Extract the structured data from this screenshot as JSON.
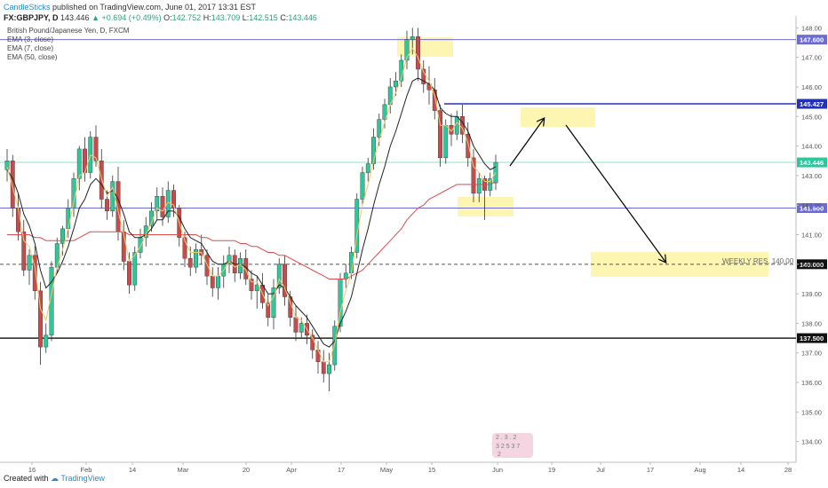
{
  "header": {
    "author": "CandleSticks",
    "published": "published on TradingView.com, June 01, 2017 13:31 EST",
    "symbol": "FX:GBPJPY, D",
    "last": "143.446",
    "change": "+0.694 (+0.49%)",
    "open_label": "O:",
    "open": "142.752",
    "high_label": "H:",
    "high": "143.709",
    "low_label": "L:",
    "low": "142.515",
    "close_label": "C:",
    "close": "143.446"
  },
  "meta": {
    "title": "British Pound/Japanese Yen, D, FXCM",
    "ema1": "EMA (3, close)",
    "ema2": "EMA (7, close)",
    "ema3": "EMA (50, close)"
  },
  "footer": {
    "created_with": "Created with",
    "brand": "TradingView"
  },
  "colors": {
    "up": "#2ec79a",
    "down": "#c74b4b",
    "ema_fast": "#f0c96a",
    "ema_mid": "#222222",
    "ema_slow": "#e04b4b",
    "level_blue": "#6b6bd6",
    "level_strong": "#2330b8",
    "highlight": "#fdf5a6",
    "price_tag": "#2ec79a"
  },
  "chart_data": {
    "type": "candlestick",
    "y_axis": {
      "ylim": [
        133.3,
        148.4
      ],
      "ticks": [
        "148.00",
        "147.00",
        "146.00",
        "145.00",
        "144.00",
        "143.00",
        "142.00",
        "141.00",
        "140.00",
        "139.00",
        "138.00",
        "137.00",
        "136.00",
        "135.00",
        "134.00"
      ]
    },
    "x_axis": {
      "ticks": [
        "16",
        "Feb",
        "14",
        "Mar",
        "20",
        "Apr",
        "17",
        "May",
        "15",
        "Jun",
        "19",
        "Jul",
        "17",
        "Aug",
        "14",
        "28"
      ]
    },
    "levels": [
      {
        "value": 147.6,
        "label": "147.600",
        "style": "solid"
      },
      {
        "value": 145.427,
        "label": "145.427",
        "style": "bold"
      },
      {
        "value": 143.446,
        "label": "143.446",
        "style": "current"
      },
      {
        "value": 141.9,
        "label": "141.900",
        "style": "solid"
      },
      {
        "value": 140.0,
        "label": "140.000",
        "style": "dashed"
      },
      {
        "value": 137.5,
        "label": "137.500",
        "style": "bold"
      }
    ],
    "annotation": {
      "text": "WEEKLY RES. 140.00"
    },
    "candles": [
      {
        "o": 143.2,
        "h": 143.9,
        "l": 142.8,
        "c": 143.5
      },
      {
        "o": 143.5,
        "h": 143.7,
        "l": 141.6,
        "c": 141.9
      },
      {
        "o": 141.9,
        "h": 142.4,
        "l": 140.8,
        "c": 141.1
      },
      {
        "o": 141.1,
        "h": 141.5,
        "l": 139.6,
        "c": 139.8
      },
      {
        "o": 139.8,
        "h": 140.5,
        "l": 139.3,
        "c": 140.3
      },
      {
        "o": 140.3,
        "h": 140.6,
        "l": 138.8,
        "c": 139.1
      },
      {
        "o": 139.1,
        "h": 139.4,
        "l": 136.6,
        "c": 137.2
      },
      {
        "o": 137.2,
        "h": 138.0,
        "l": 137.0,
        "c": 137.6
      },
      {
        "o": 137.6,
        "h": 140.1,
        "l": 137.4,
        "c": 139.9
      },
      {
        "o": 139.9,
        "h": 140.9,
        "l": 139.7,
        "c": 140.7
      },
      {
        "o": 140.7,
        "h": 141.3,
        "l": 140.3,
        "c": 141.2
      },
      {
        "o": 141.2,
        "h": 142.2,
        "l": 140.9,
        "c": 141.9
      },
      {
        "o": 141.9,
        "h": 143.1,
        "l": 141.6,
        "c": 142.9
      },
      {
        "o": 142.9,
        "h": 144.0,
        "l": 142.5,
        "c": 143.9
      },
      {
        "o": 143.9,
        "h": 144.3,
        "l": 142.8,
        "c": 143.1
      },
      {
        "o": 143.1,
        "h": 144.5,
        "l": 142.9,
        "c": 144.3
      },
      {
        "o": 144.3,
        "h": 144.7,
        "l": 143.3,
        "c": 143.5
      },
      {
        "o": 143.5,
        "h": 143.9,
        "l": 141.9,
        "c": 142.2
      },
      {
        "o": 142.2,
        "h": 142.5,
        "l": 141.5,
        "c": 141.8
      },
      {
        "o": 141.8,
        "h": 143.0,
        "l": 141.6,
        "c": 142.8
      },
      {
        "o": 142.8,
        "h": 143.3,
        "l": 140.8,
        "c": 141.1
      },
      {
        "o": 141.1,
        "h": 141.5,
        "l": 139.8,
        "c": 140.1
      },
      {
        "o": 140.1,
        "h": 140.4,
        "l": 139.0,
        "c": 139.3
      },
      {
        "o": 139.3,
        "h": 140.6,
        "l": 139.1,
        "c": 140.4
      },
      {
        "o": 140.4,
        "h": 141.2,
        "l": 140.2,
        "c": 140.9
      },
      {
        "o": 140.9,
        "h": 141.6,
        "l": 140.6,
        "c": 141.3
      },
      {
        "o": 141.3,
        "h": 142.1,
        "l": 141.1,
        "c": 141.8
      },
      {
        "o": 141.8,
        "h": 142.6,
        "l": 141.5,
        "c": 142.3
      },
      {
        "o": 142.3,
        "h": 142.6,
        "l": 141.3,
        "c": 141.6
      },
      {
        "o": 141.6,
        "h": 142.8,
        "l": 141.4,
        "c": 142.5
      },
      {
        "o": 142.5,
        "h": 142.7,
        "l": 141.6,
        "c": 141.9
      },
      {
        "o": 141.9,
        "h": 142.0,
        "l": 140.6,
        "c": 140.9
      },
      {
        "o": 140.9,
        "h": 141.1,
        "l": 139.9,
        "c": 140.2
      },
      {
        "o": 140.2,
        "h": 140.6,
        "l": 139.6,
        "c": 139.9
      },
      {
        "o": 139.9,
        "h": 140.7,
        "l": 139.7,
        "c": 140.5
      },
      {
        "o": 140.5,
        "h": 141.0,
        "l": 140.0,
        "c": 140.3
      },
      {
        "o": 140.3,
        "h": 140.5,
        "l": 139.3,
        "c": 139.6
      },
      {
        "o": 139.6,
        "h": 139.9,
        "l": 138.9,
        "c": 139.2
      },
      {
        "o": 139.2,
        "h": 139.9,
        "l": 138.8,
        "c": 139.6
      },
      {
        "o": 139.6,
        "h": 140.3,
        "l": 139.2,
        "c": 140.0
      },
      {
        "o": 140.0,
        "h": 140.6,
        "l": 139.7,
        "c": 140.3
      },
      {
        "o": 140.3,
        "h": 140.5,
        "l": 139.4,
        "c": 139.7
      },
      {
        "o": 139.7,
        "h": 140.4,
        "l": 139.5,
        "c": 140.2
      },
      {
        "o": 140.2,
        "h": 140.5,
        "l": 139.3,
        "c": 139.5
      },
      {
        "o": 139.5,
        "h": 139.8,
        "l": 138.8,
        "c": 139.1
      },
      {
        "o": 139.1,
        "h": 139.6,
        "l": 138.5,
        "c": 139.3
      },
      {
        "o": 139.3,
        "h": 139.7,
        "l": 138.5,
        "c": 138.7
      },
      {
        "o": 138.7,
        "h": 139.0,
        "l": 137.9,
        "c": 138.2
      },
      {
        "o": 138.2,
        "h": 139.5,
        "l": 137.8,
        "c": 139.2
      },
      {
        "o": 139.2,
        "h": 140.2,
        "l": 139.0,
        "c": 140.0
      },
      {
        "o": 140.0,
        "h": 140.3,
        "l": 138.6,
        "c": 138.9
      },
      {
        "o": 138.9,
        "h": 139.1,
        "l": 137.9,
        "c": 138.2
      },
      {
        "o": 138.2,
        "h": 138.6,
        "l": 137.4,
        "c": 137.7
      },
      {
        "o": 137.7,
        "h": 138.2,
        "l": 137.5,
        "c": 138.0
      },
      {
        "o": 138.0,
        "h": 138.3,
        "l": 137.3,
        "c": 137.6
      },
      {
        "o": 137.6,
        "h": 137.8,
        "l": 136.8,
        "c": 137.1
      },
      {
        "o": 137.1,
        "h": 137.4,
        "l": 136.3,
        "c": 136.7
      },
      {
        "o": 136.7,
        "h": 137.1,
        "l": 136.0,
        "c": 136.3
      },
      {
        "o": 136.3,
        "h": 137.0,
        "l": 135.7,
        "c": 136.6
      },
      {
        "o": 136.6,
        "h": 138.1,
        "l": 136.4,
        "c": 137.9
      },
      {
        "o": 137.9,
        "h": 139.7,
        "l": 137.7,
        "c": 139.5
      },
      {
        "o": 139.5,
        "h": 140.0,
        "l": 139.2,
        "c": 139.7
      },
      {
        "o": 139.7,
        "h": 140.6,
        "l": 139.5,
        "c": 140.4
      },
      {
        "o": 140.4,
        "h": 142.4,
        "l": 140.2,
        "c": 142.2
      },
      {
        "o": 142.2,
        "h": 143.3,
        "l": 142.0,
        "c": 143.1
      },
      {
        "o": 143.1,
        "h": 143.6,
        "l": 142.8,
        "c": 143.4
      },
      {
        "o": 143.4,
        "h": 144.6,
        "l": 143.2,
        "c": 144.3
      },
      {
        "o": 144.3,
        "h": 145.1,
        "l": 144.0,
        "c": 144.9
      },
      {
        "o": 144.9,
        "h": 145.6,
        "l": 144.6,
        "c": 145.4
      },
      {
        "o": 145.4,
        "h": 146.3,
        "l": 145.1,
        "c": 146.0
      },
      {
        "o": 146.0,
        "h": 146.5,
        "l": 145.7,
        "c": 146.2
      },
      {
        "o": 146.2,
        "h": 147.1,
        "l": 146.0,
        "c": 146.9
      },
      {
        "o": 146.9,
        "h": 147.9,
        "l": 146.6,
        "c": 147.6
      },
      {
        "o": 147.6,
        "h": 148.0,
        "l": 147.1,
        "c": 147.7
      },
      {
        "o": 147.7,
        "h": 148.0,
        "l": 146.2,
        "c": 146.6
      },
      {
        "o": 146.6,
        "h": 146.9,
        "l": 145.8,
        "c": 146.1
      },
      {
        "o": 146.1,
        "h": 146.7,
        "l": 145.4,
        "c": 145.9
      },
      {
        "o": 145.9,
        "h": 146.3,
        "l": 144.9,
        "c": 145.2
      },
      {
        "o": 145.2,
        "h": 145.4,
        "l": 143.3,
        "c": 143.6
      },
      {
        "o": 143.6,
        "h": 144.9,
        "l": 143.4,
        "c": 144.7
      },
      {
        "o": 144.7,
        "h": 145.1,
        "l": 144.0,
        "c": 144.4
      },
      {
        "o": 144.4,
        "h": 145.2,
        "l": 144.2,
        "c": 145.0
      },
      {
        "o": 145.0,
        "h": 145.4,
        "l": 144.1,
        "c": 144.4
      },
      {
        "o": 144.4,
        "h": 144.8,
        "l": 143.3,
        "c": 143.6
      },
      {
        "o": 143.6,
        "h": 143.9,
        "l": 142.1,
        "c": 142.4
      },
      {
        "o": 142.4,
        "h": 143.1,
        "l": 142.1,
        "c": 142.9
      },
      {
        "o": 142.9,
        "h": 143.0,
        "l": 141.5,
        "c": 142.5
      },
      {
        "o": 142.5,
        "h": 143.1,
        "l": 142.3,
        "c": 142.9
      },
      {
        "o": 142.752,
        "h": 143.709,
        "l": 142.515,
        "c": 143.446
      }
    ],
    "ema_fast": [
      143.3,
      142.6,
      141.9,
      140.8,
      140.6,
      139.9,
      138.5,
      138.1,
      139.0,
      139.9,
      140.5,
      141.2,
      142.1,
      143.0,
      143.1,
      143.7,
      143.6,
      142.9,
      142.3,
      142.6,
      141.8,
      141.0,
      140.1,
      140.3,
      140.6,
      141.0,
      141.4,
      141.9,
      141.8,
      142.1,
      142.0,
      141.4,
      140.8,
      140.4,
      140.4,
      140.4,
      140.0,
      139.6,
      139.6,
      139.8,
      140.1,
      139.9,
      140.0,
      139.8,
      139.4,
      139.4,
      139.0,
      138.6,
      138.9,
      139.5,
      139.2,
      138.7,
      138.2,
      138.1,
      137.8,
      137.5,
      137.1,
      136.7,
      136.7,
      137.3,
      138.4,
      139.1,
      139.7,
      141.0,
      142.0,
      142.7,
      143.5,
      144.2,
      144.8,
      145.4,
      145.8,
      146.3,
      147.0,
      147.3,
      147.0,
      146.5,
      146.2,
      145.7,
      144.7,
      144.7,
      144.5,
      144.8,
      144.6,
      144.1,
      143.3,
      143.1,
      142.8,
      142.8,
      143.1
    ],
    "ema_mid": [
      143.2,
      142.9,
      142.4,
      141.7,
      141.3,
      140.7,
      139.8,
      139.2,
      139.4,
      139.7,
      140.1,
      140.6,
      141.2,
      141.9,
      142.2,
      142.7,
      142.9,
      142.7,
      142.4,
      142.5,
      142.2,
      141.7,
      141.1,
      140.9,
      140.9,
      141.0,
      141.2,
      141.5,
      141.5,
      141.8,
      141.8,
      141.6,
      141.2,
      140.9,
      140.8,
      140.7,
      140.4,
      140.1,
      140.0,
      140.0,
      140.1,
      140.0,
      140.0,
      139.9,
      139.7,
      139.6,
      139.3,
      139.0,
      139.0,
      139.3,
      139.2,
      138.9,
      138.6,
      138.4,
      138.2,
      137.9,
      137.6,
      137.3,
      137.2,
      137.4,
      138.0,
      138.4,
      138.9,
      139.7,
      140.5,
      141.2,
      142.0,
      142.7,
      143.3,
      144.0,
      144.5,
      145.1,
      145.7,
      146.2,
      146.3,
      146.2,
      146.1,
      145.9,
      145.3,
      145.1,
      145.0,
      145.0,
      144.8,
      144.5,
      144.0,
      143.7,
      143.4,
      143.2,
      143.3
    ],
    "ema_slow": [
      141.0,
      141.0,
      141.0,
      141.0,
      141.0,
      140.9,
      140.9,
      140.8,
      140.8,
      140.8,
      140.8,
      140.8,
      140.8,
      140.9,
      141.0,
      141.1,
      141.1,
      141.1,
      141.1,
      141.1,
      141.1,
      141.1,
      141.0,
      141.0,
      141.0,
      141.0,
      141.0,
      141.0,
      141.0,
      141.0,
      141.0,
      141.0,
      141.0,
      141.0,
      141.0,
      140.9,
      140.9,
      140.8,
      140.8,
      140.8,
      140.8,
      140.8,
      140.7,
      140.7,
      140.6,
      140.6,
      140.5,
      140.4,
      140.4,
      140.3,
      140.3,
      140.2,
      140.1,
      140.0,
      139.9,
      139.8,
      139.7,
      139.6,
      139.5,
      139.5,
      139.5,
      139.5,
      139.6,
      139.7,
      139.8,
      140.0,
      140.2,
      140.4,
      140.6,
      140.8,
      141.0,
      141.2,
      141.5,
      141.7,
      141.9,
      142.0,
      142.2,
      142.3,
      142.4,
      142.5,
      142.6,
      142.7,
      142.7,
      142.7,
      142.7,
      142.7,
      142.7,
      142.7,
      142.8
    ]
  },
  "watermark": {
    "line1": "2 . 3 .  2",
    "line2": "3 2 5 3 7",
    "line3": "2"
  }
}
